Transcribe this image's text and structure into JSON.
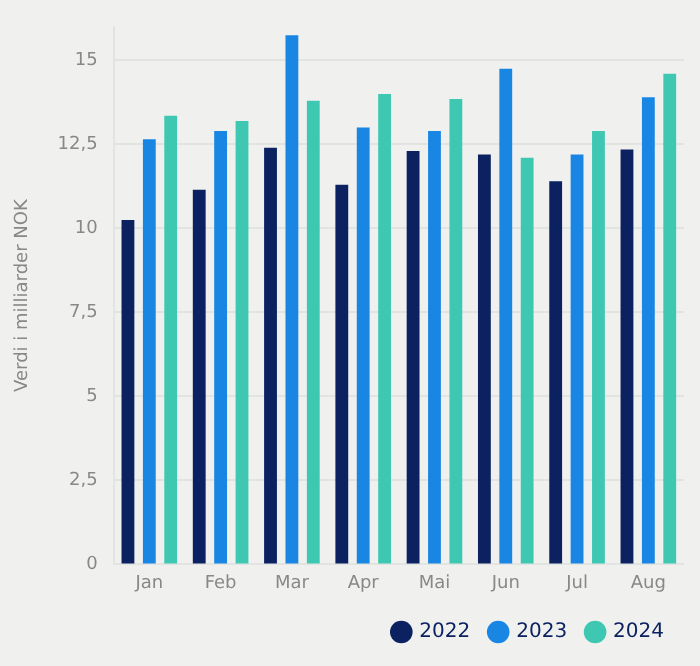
{
  "chart_data": {
    "type": "bar",
    "ylabel": "Verdi i milliarder NOK",
    "categories": [
      "Jan",
      "Feb",
      "Mar",
      "Apr",
      "Mai",
      "Jun",
      "Jul",
      "Aug"
    ],
    "series": [
      {
        "name": "2022",
        "color": "#0b2160",
        "values": [
          10.25,
          11.15,
          12.4,
          11.3,
          12.3,
          12.2,
          11.4,
          12.35
        ]
      },
      {
        "name": "2023",
        "color": "#1a86e4",
        "values": [
          12.65,
          12.9,
          15.75,
          13.0,
          12.9,
          14.75,
          12.2,
          13.9
        ]
      },
      {
        "name": "2024",
        "color": "#3ec8b2",
        "values": [
          13.35,
          13.2,
          13.8,
          14.0,
          13.85,
          12.1,
          12.9,
          14.6
        ]
      }
    ],
    "ylim": [
      0,
      16
    ],
    "yticks": [
      0,
      {
        "value": 2.5,
        "label": "2,5"
      },
      5,
      {
        "value": 7.5,
        "label": "7,5"
      },
      10,
      {
        "value": 12.5,
        "label": "12,5"
      },
      15
    ],
    "grid": "y",
    "legend": "bottom right"
  }
}
